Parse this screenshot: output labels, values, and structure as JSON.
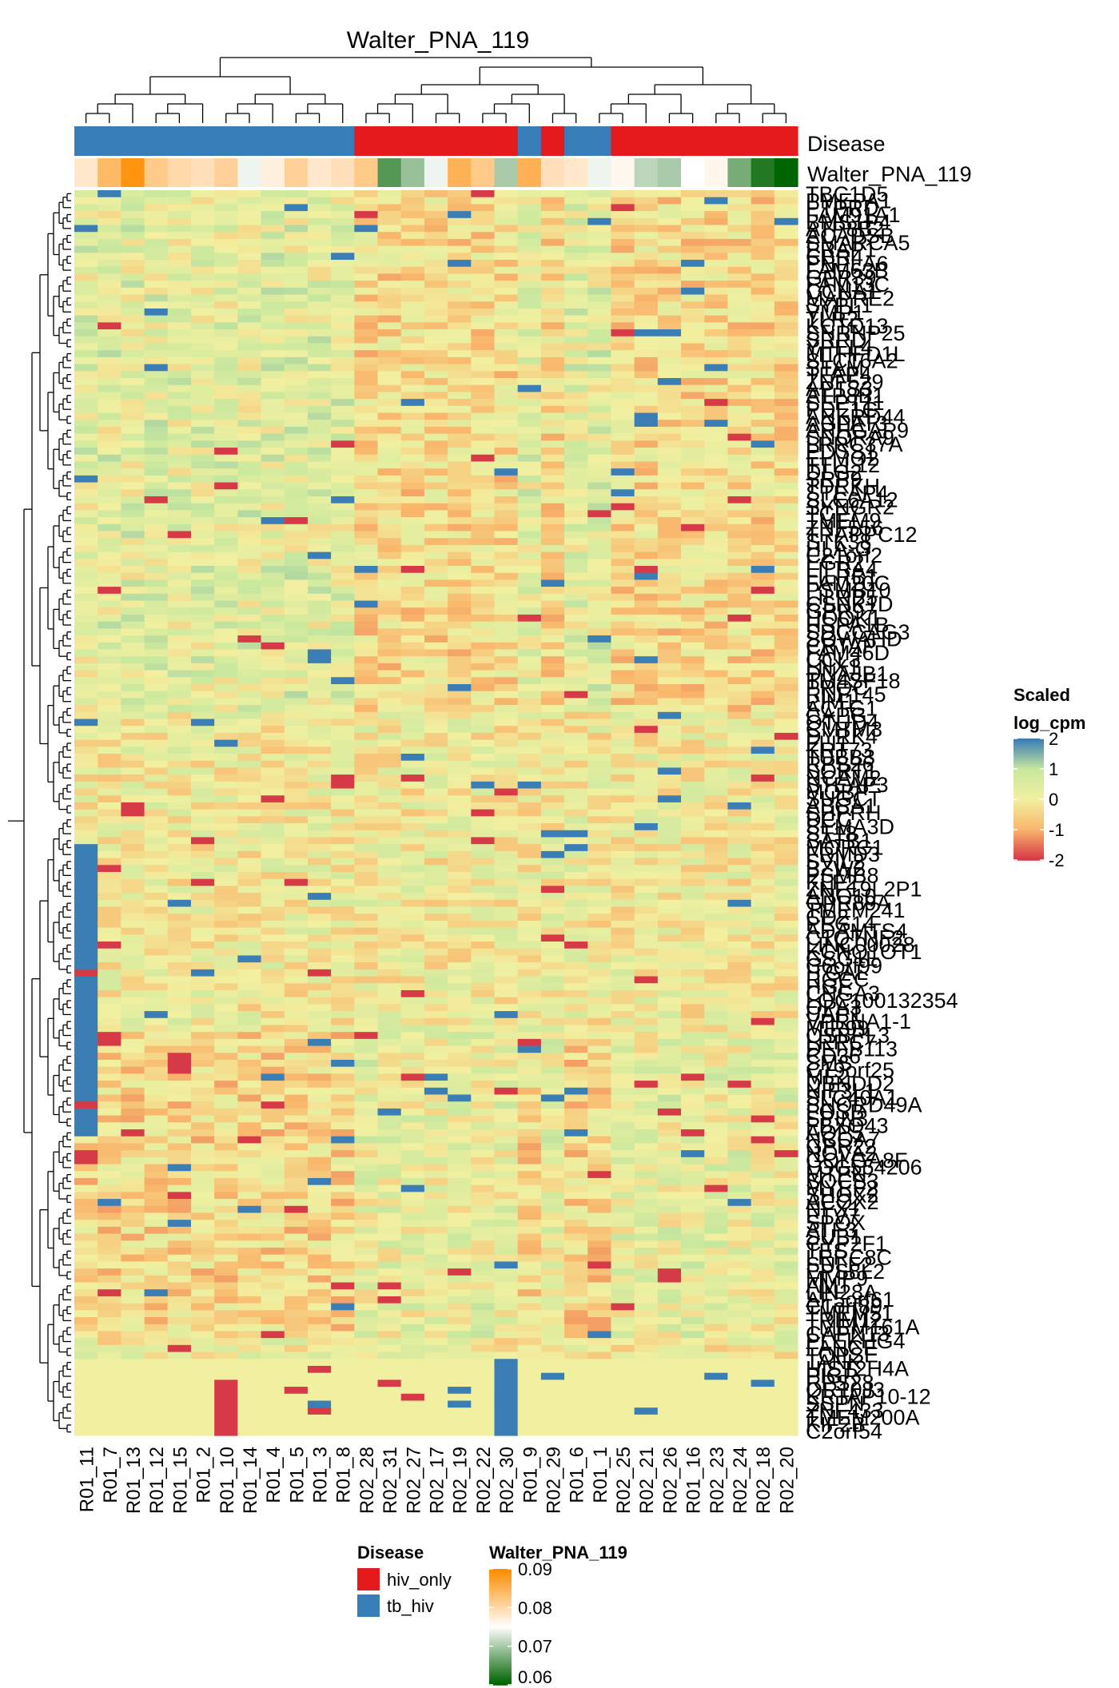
{
  "chart_data": {
    "type": "heatmap",
    "title": "Walter_PNA_119",
    "columns": [
      "R01_11",
      "R01_7",
      "R01_13",
      "R01_12",
      "R01_15",
      "R01_2",
      "R01_10",
      "R01_14",
      "R01_4",
      "R01_5",
      "R01_3",
      "R01_8",
      "R02_28",
      "R02_31",
      "R02_27",
      "R02_17",
      "R02_19",
      "R02_22",
      "R02_30",
      "R01_9",
      "R02_29",
      "R01_6",
      "R01_1",
      "R02_25",
      "R02_21",
      "R02_26",
      "R01_16",
      "R02_23",
      "R02_24",
      "R02_18",
      "R02_20"
    ],
    "rows": [
      "TBC1D5",
      "PMEPA1",
      "PTPRD",
      "FAM91A1",
      "BMS1P4",
      "ATP8B2",
      "ACADSB",
      "SMARCA5",
      "ERAP1",
      "CBR4",
      "PNPLA6",
      "FAM63B",
      "GPR39",
      "FAM13C",
      "CCNA1",
      "MAPRE2",
      "SYPL1",
      "VMP1",
      "TLR2",
      "KCTD13",
      "SNRNP25",
      "SRRD",
      "YPEL4",
      "MTHFD1L",
      "SLC16A2",
      "STAM",
      "TFAP4",
      "ZNF529",
      "AP1S3",
      "ATP8B1",
      "SEPT11",
      "PDE1C",
      "ANKRD44",
      "AGPAT3",
      "ARHGAP9",
      "SNORA9",
      "LRRC37A",
      "PDSS1",
      "ELMO2",
      "TTLL12",
      "DLG2",
      "SRP9",
      "TDRKH",
      "STEAP4",
      "SLC6A12",
      "SYNGR2",
      "TCF7",
      "TMEM9",
      "ZNF556",
      "TRAPPC12",
      "STK38",
      "HLA-G",
      "C21orf2",
      "EGR2",
      "LILRA4",
      "LILRB1",
      "FAM20C",
      "PSMB10",
      "LILRB5",
      "CSNK1D",
      "GPR97",
      "HOOK1",
      "HSPA1B",
      "SDCCAG3",
      "SOWAHD",
      "CRTAP",
      "FAM46D",
      "CCL3",
      "LNX1",
      "DNAJB1",
      "TM4SF18",
      "PROC",
      "RNF145",
      "PIM1",
      "ACTG1",
      "CAPG",
      "OTUD4",
      "CMTM3",
      "DYRK4",
      "FLI1",
      "KRT73",
      "TUBB3",
      "RPS26",
      "SORT1",
      "NCAM2",
      "STEAP3",
      "MOBP",
      "SUGCT",
      "ABCA1",
      "SHPRH",
      "DCC",
      "SEMA3D",
      "ST18",
      "SATB1",
      "MORC1",
      "FRMD3",
      "SVIL2",
      "BZW2",
      "PSMB8",
      "KLF2",
      "ZNF19L2P1",
      "ANO10",
      "GPR89A",
      "TMEM241",
      "CD2",
      "PEG14",
      "ADAMTS4",
      "C1QTNF2",
      "LINC00028",
      "KCNQ1OT1",
      "GSG1L",
      "C6orf99",
      "ITGAL",
      "RGCC",
      "HGF",
      "CNGA3",
      "LOC100132354",
      "OPA3",
      "UAP1",
      "VPRNA1-1",
      "MIR99",
      "OSBPL3",
      "LRRC7",
      "DEFB113",
      "CD36",
      "SMS",
      "C19orf25",
      "ME2",
      "DBNDD2",
      "NIF3L1",
      "SLC40A1",
      "SNORD49A",
      "FOSB",
      "SPIN3",
      "FBXO43",
      "AQP5",
      "NCOA7",
      "GPR22",
      "NOVA2",
      "GOLGA8F",
      "LOC554206",
      "MTPN",
      "SOCS3",
      "MYEF2",
      "SHOX2",
      "ACOX2",
      "NFX1",
      "ETV7",
      "SPOX",
      "ATF3",
      "SUB1",
      "CYP2F1",
      "TES",
      "LRRC8C",
      "SULF2",
      "EPS8L2",
      "MMP9",
      "AMT",
      "LIN28A",
      "AF5orf61",
      "C1orf89",
      "TMEM51",
      "TRIM12",
      "TMEM161A",
      "CAPN13",
      "PLEKHG4",
      "FANCE",
      "TOPSE",
      "TANK",
      "HIST2H4A",
      "PIGR",
      "RPS28",
      "OR10J3",
      "KRTAP10-12",
      "SSPN",
      "ZNF433",
      "TMEM200A",
      "KIF2B",
      "C2orf54"
    ],
    "shown_row_labels": [
      "TBC1D5",
      "PMEPA1",
      "PTPRD",
      "FAM91A1",
      "BMS1P4",
      "ATP8B2",
      "ACADSB",
      "SMARCA5",
      "ERAP1",
      "CBR4",
      "PNPLA6",
      "FAM63B",
      "GPR39",
      "FAM13C",
      "CCNA1",
      "MAPRE2",
      "SYPL1",
      "VMP1",
      "TLR2",
      "KCTD13",
      "SNRNP25",
      "SRRD",
      "YPEL4",
      "MTHFD1L",
      "SLC16A2",
      "STAM",
      "TFAP4",
      "ZNF529",
      "AP1S3",
      "ATP8B1",
      "SEPT11",
      "PDE1C",
      "ANKRD44",
      "AGPAT3",
      "ARHGAP9",
      "SNORA9",
      "LRRC37A",
      "PDSS1",
      "ELMO2",
      "TTLL12",
      "DLG2",
      "SRP9",
      "TDRKH",
      "STEAP4",
      "SLC6A12",
      "SYNGR2",
      "TCF7",
      "TMEM9",
      "ZNF556",
      "TRAPPC12",
      "STK38",
      "HLA-G",
      "C21orf2",
      "EGR2",
      "LILRA4",
      "LILRB1",
      "FAM20C",
      "PSMB10",
      "LILRB5",
      "CSNK1D",
      "GPR97",
      "HOOK1",
      "HSPA1B",
      "SDCCAG3",
      "SOWAHD",
      "CRTAP",
      "FAM46D",
      "CCL3",
      "LNX1",
      "DNAJB1",
      "TM4SF18",
      "PROC",
      "RNF145",
      "PIM1",
      "ACTG1",
      "CAPG",
      "OTUD4",
      "CMTM3",
      "DYRK4",
      "FLI1",
      "KRT73",
      "TUBB3",
      "RPS26",
      "SORT1",
      "NCAM2",
      "STEAP3",
      "MOBP",
      "SUGCT",
      "ABCA1",
      "SHPRH",
      "DCC",
      "SEMA3D",
      "ST18",
      "SATB1",
      "MORC1",
      "FRMD3",
      "SVIL2",
      "BZW2",
      "PSMB8",
      "KLF2",
      "ZNF19L2P1",
      "ANO10",
      "GPR89A",
      "TMEM241",
      "CD2",
      "PEG14",
      "ADAMTS4",
      "C1QTNF2",
      "LINC00028",
      "KCNQ1OT1",
      "GSG1L",
      "C6orf99",
      "ITGAL",
      "RGCC",
      "HGF",
      "CNGA3",
      "LOC100132354",
      "OPA3",
      "UAP1",
      "VPRNA1-1",
      "MIR99",
      "OSBPL3",
      "LRRC7",
      "DEFB113",
      "CD36",
      "SMS",
      "C19orf25",
      "ME2",
      "DBNDD2",
      "NIF3L1",
      "SLC40A1",
      "SNORD49A",
      "FOSB",
      "SPIN3",
      "FBXO43",
      "AQP5",
      "NCOA7",
      "GPR22",
      "NOVA2",
      "GOLGA8F",
      "LOC554206",
      "MTPN",
      "SOCS3",
      "MYEF2",
      "SHOX2",
      "ACOX2",
      "NFX1",
      "ETV7",
      "SPOX",
      "ATF3",
      "SUB1",
      "CYP2F1",
      "TES",
      "LRRC8C",
      "SULF2",
      "EPS8L2",
      "MMP9",
      "AMT",
      "LIN28A",
      "AF5orf61",
      "C1orf89",
      "TMEM51",
      "TRIM12",
      "TMEM161A",
      "CAPN13",
      "PLEKHG4",
      "FANCE",
      "TOPSE",
      "TANK",
      "HIST2H4A",
      "PIGR",
      "RPS28",
      "OR10J3",
      "KRTAP10-12",
      "SSPN",
      "ZNF433",
      "TMEM200A",
      "KIF2B",
      "C2orf54"
    ],
    "disease": [
      "tb_hiv",
      "tb_hiv",
      "tb_hiv",
      "tb_hiv",
      "tb_hiv",
      "tb_hiv",
      "tb_hiv",
      "tb_hiv",
      "tb_hiv",
      "tb_hiv",
      "tb_hiv",
      "tb_hiv",
      "hiv_only",
      "hiv_only",
      "hiv_only",
      "hiv_only",
      "hiv_only",
      "hiv_only",
      "hiv_only",
      "tb_hiv",
      "hiv_only",
      "tb_hiv",
      "tb_hiv",
      "hiv_only",
      "hiv_only",
      "hiv_only",
      "hiv_only",
      "hiv_only",
      "hiv_only",
      "hiv_only",
      "hiv_only"
    ],
    "score": [
      0.078,
      0.084,
      0.089,
      0.082,
      0.08,
      0.079,
      0.081,
      0.074,
      0.077,
      0.081,
      0.078,
      0.079,
      0.082,
      0.065,
      0.069,
      0.074,
      0.085,
      0.082,
      0.07,
      0.085,
      0.079,
      0.078,
      0.074,
      0.076,
      0.071,
      0.07,
      0.075,
      0.076,
      0.067,
      0.062,
      0.06
    ],
    "annotation_labels": {
      "disease": "Disease",
      "score": "Walter_PNA_119"
    },
    "heatmap_legend": {
      "title_line1": "Scaled",
      "title_line2": "log_cpm",
      "ticks": [
        2,
        1,
        0,
        -1,
        -2
      ],
      "range": [
        -2,
        2
      ]
    },
    "disease_legend": {
      "title": "Disease",
      "entries": [
        {
          "label": "hiv_only",
          "color": "#E41A1C"
        },
        {
          "label": "tb_hiv",
          "color": "#377EB8"
        }
      ]
    },
    "score_legend": {
      "title": "Walter_PNA_119",
      "ticks": [
        0.09,
        0.08,
        0.07,
        0.06
      ],
      "range": [
        0.06,
        0.09
      ]
    },
    "colors": {
      "heat_high": "#3B7EB5",
      "heat_mid_high": "#C8E89E",
      "heat_mid": "#F2F0A0",
      "heat_mid_low": "#F9B76C",
      "heat_low": "#D73A47",
      "score_high": "#FF8C00",
      "score_mid": "#FFFFFF",
      "score_low": "#006400",
      "hiv_only": "#E41A1C",
      "tb_hiv": "#377EB8"
    }
  }
}
